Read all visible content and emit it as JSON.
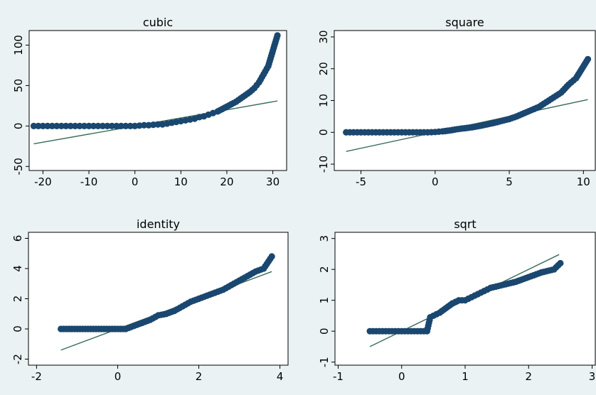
{
  "chart_data": [
    {
      "type": "scatter",
      "title": "cubic",
      "xlim": [
        -23,
        33
      ],
      "ylim": [
        -55,
        118
      ],
      "xticks": [
        -20,
        -10,
        0,
        10,
        20,
        30
      ],
      "yticks": [
        -50,
        0,
        50,
        100
      ],
      "fit_line": {
        "x": [
          -22,
          31
        ],
        "y": [
          -22,
          31
        ]
      },
      "points": [
        [
          -22,
          0
        ],
        [
          -21,
          0
        ],
        [
          -20,
          0
        ],
        [
          -19,
          0
        ],
        [
          -18,
          0
        ],
        [
          -17,
          0
        ],
        [
          -16,
          0
        ],
        [
          -15,
          0
        ],
        [
          -14,
          0
        ],
        [
          -13,
          0
        ],
        [
          -12,
          0
        ],
        [
          -11,
          0
        ],
        [
          -10,
          0
        ],
        [
          -9,
          0
        ],
        [
          -8,
          0
        ],
        [
          -7,
          0
        ],
        [
          -6,
          0
        ],
        [
          -5,
          0
        ],
        [
          -4,
          0
        ],
        [
          -3,
          0
        ],
        [
          -2,
          0
        ],
        [
          -1,
          0
        ],
        [
          0,
          0
        ],
        [
          1,
          0.5
        ],
        [
          2,
          1
        ],
        [
          3,
          1
        ],
        [
          4,
          1.5
        ],
        [
          5,
          2
        ],
        [
          6,
          2
        ],
        [
          7,
          3
        ],
        [
          8,
          4
        ],
        [
          9,
          5
        ],
        [
          10,
          6
        ],
        [
          11,
          7
        ],
        [
          12,
          8
        ],
        [
          13,
          9
        ],
        [
          14,
          11
        ],
        [
          15,
          12
        ],
        [
          16,
          14
        ],
        [
          17,
          16
        ],
        [
          18,
          18
        ],
        [
          19,
          21
        ],
        [
          20,
          24
        ],
        [
          21,
          27
        ],
        [
          22,
          30
        ],
        [
          23,
          34
        ],
        [
          24,
          38
        ],
        [
          25,
          42
        ],
        [
          26,
          47
        ],
        [
          27,
          54
        ],
        [
          28,
          64
        ],
        [
          29,
          74
        ],
        [
          31,
          112
        ]
      ]
    },
    {
      "type": "scatter",
      "title": "square",
      "xlim": [
        -6.8,
        10.8
      ],
      "ylim": [
        -12,
        32
      ],
      "xticks": [
        -5,
        0,
        5,
        10
      ],
      "yticks": [
        -10,
        0,
        10,
        20,
        30
      ],
      "fit_line": {
        "x": [
          -6,
          10.3
        ],
        "y": [
          -6,
          10.3
        ]
      },
      "points": [
        [
          -6,
          0
        ],
        [
          -5.5,
          0
        ],
        [
          -5,
          0
        ],
        [
          -4.5,
          0
        ],
        [
          -4,
          0
        ],
        [
          -3.5,
          0
        ],
        [
          -3,
          0
        ],
        [
          -2.5,
          0
        ],
        [
          -2,
          0
        ],
        [
          -1.5,
          0
        ],
        [
          -1,
          0
        ],
        [
          -0.5,
          0
        ],
        [
          0,
          0.1
        ],
        [
          0.5,
          0.3
        ],
        [
          1,
          0.6
        ],
        [
          1.5,
          1
        ],
        [
          2,
          1.3
        ],
        [
          2.5,
          1.6
        ],
        [
          3,
          2
        ],
        [
          3.5,
          2.5
        ],
        [
          4,
          3
        ],
        [
          4.5,
          3.6
        ],
        [
          5,
          4.2
        ],
        [
          5.5,
          5
        ],
        [
          6,
          6
        ],
        [
          6.5,
          7
        ],
        [
          7,
          8
        ],
        [
          7.5,
          9.5
        ],
        [
          8,
          11
        ],
        [
          8.5,
          12.5
        ],
        [
          9,
          15
        ],
        [
          9.5,
          17
        ],
        [
          10.3,
          23
        ]
      ]
    },
    {
      "type": "scatter",
      "title": "identity",
      "xlim": [
        -2.2,
        4.2
      ],
      "ylim": [
        -2.4,
        6.4
      ],
      "xticks": [
        -2,
        0,
        2,
        4
      ],
      "yticks": [
        -2,
        0,
        2,
        4,
        6
      ],
      "fit_line": {
        "x": [
          -1.4,
          3.8
        ],
        "y": [
          -1.4,
          3.8
        ]
      },
      "points": [
        [
          -1.4,
          0
        ],
        [
          -1.2,
          0
        ],
        [
          -1,
          0
        ],
        [
          -0.8,
          0
        ],
        [
          -0.6,
          0
        ],
        [
          -0.4,
          0
        ],
        [
          -0.2,
          0
        ],
        [
          0,
          0
        ],
        [
          0.2,
          0
        ],
        [
          0.4,
          0.2
        ],
        [
          0.6,
          0.4
        ],
        [
          0.8,
          0.6
        ],
        [
          1,
          0.9
        ],
        [
          1.2,
          1
        ],
        [
          1.4,
          1.2
        ],
        [
          1.6,
          1.5
        ],
        [
          1.8,
          1.8
        ],
        [
          2,
          2
        ],
        [
          2.2,
          2.2
        ],
        [
          2.4,
          2.4
        ],
        [
          2.6,
          2.6
        ],
        [
          2.8,
          2.9
        ],
        [
          3,
          3.2
        ],
        [
          3.2,
          3.5
        ],
        [
          3.4,
          3.8
        ],
        [
          3.6,
          4
        ],
        [
          3.8,
          4.8
        ]
      ]
    },
    {
      "type": "scatter",
      "title": "sqrt",
      "xlim": [
        -1.05,
        3.05
      ],
      "ylim": [
        -1.1,
        3.2
      ],
      "xticks": [
        -1,
        0,
        1,
        2,
        3
      ],
      "yticks": [
        -1,
        0,
        1,
        2,
        3
      ],
      "fit_line": {
        "x": [
          -0.5,
          2.48
        ],
        "y": [
          -0.5,
          2.48
        ]
      },
      "points": [
        [
          -0.5,
          0
        ],
        [
          -0.4,
          0
        ],
        [
          -0.3,
          0
        ],
        [
          -0.2,
          0
        ],
        [
          -0.1,
          0
        ],
        [
          0,
          0
        ],
        [
          0.1,
          0
        ],
        [
          0.2,
          0
        ],
        [
          0.3,
          0
        ],
        [
          0.4,
          0
        ],
        [
          0.45,
          0.45
        ],
        [
          0.5,
          0.5
        ],
        [
          0.6,
          0.6
        ],
        [
          0.7,
          0.75
        ],
        [
          0.8,
          0.9
        ],
        [
          0.9,
          1
        ],
        [
          1,
          1
        ],
        [
          1.1,
          1.1
        ],
        [
          1.2,
          1.2
        ],
        [
          1.3,
          1.3
        ],
        [
          1.4,
          1.4
        ],
        [
          1.6,
          1.5
        ],
        [
          1.8,
          1.6
        ],
        [
          2,
          1.75
        ],
        [
          2.2,
          1.9
        ],
        [
          2.4,
          2
        ],
        [
          2.5,
          2.2
        ]
      ]
    }
  ]
}
